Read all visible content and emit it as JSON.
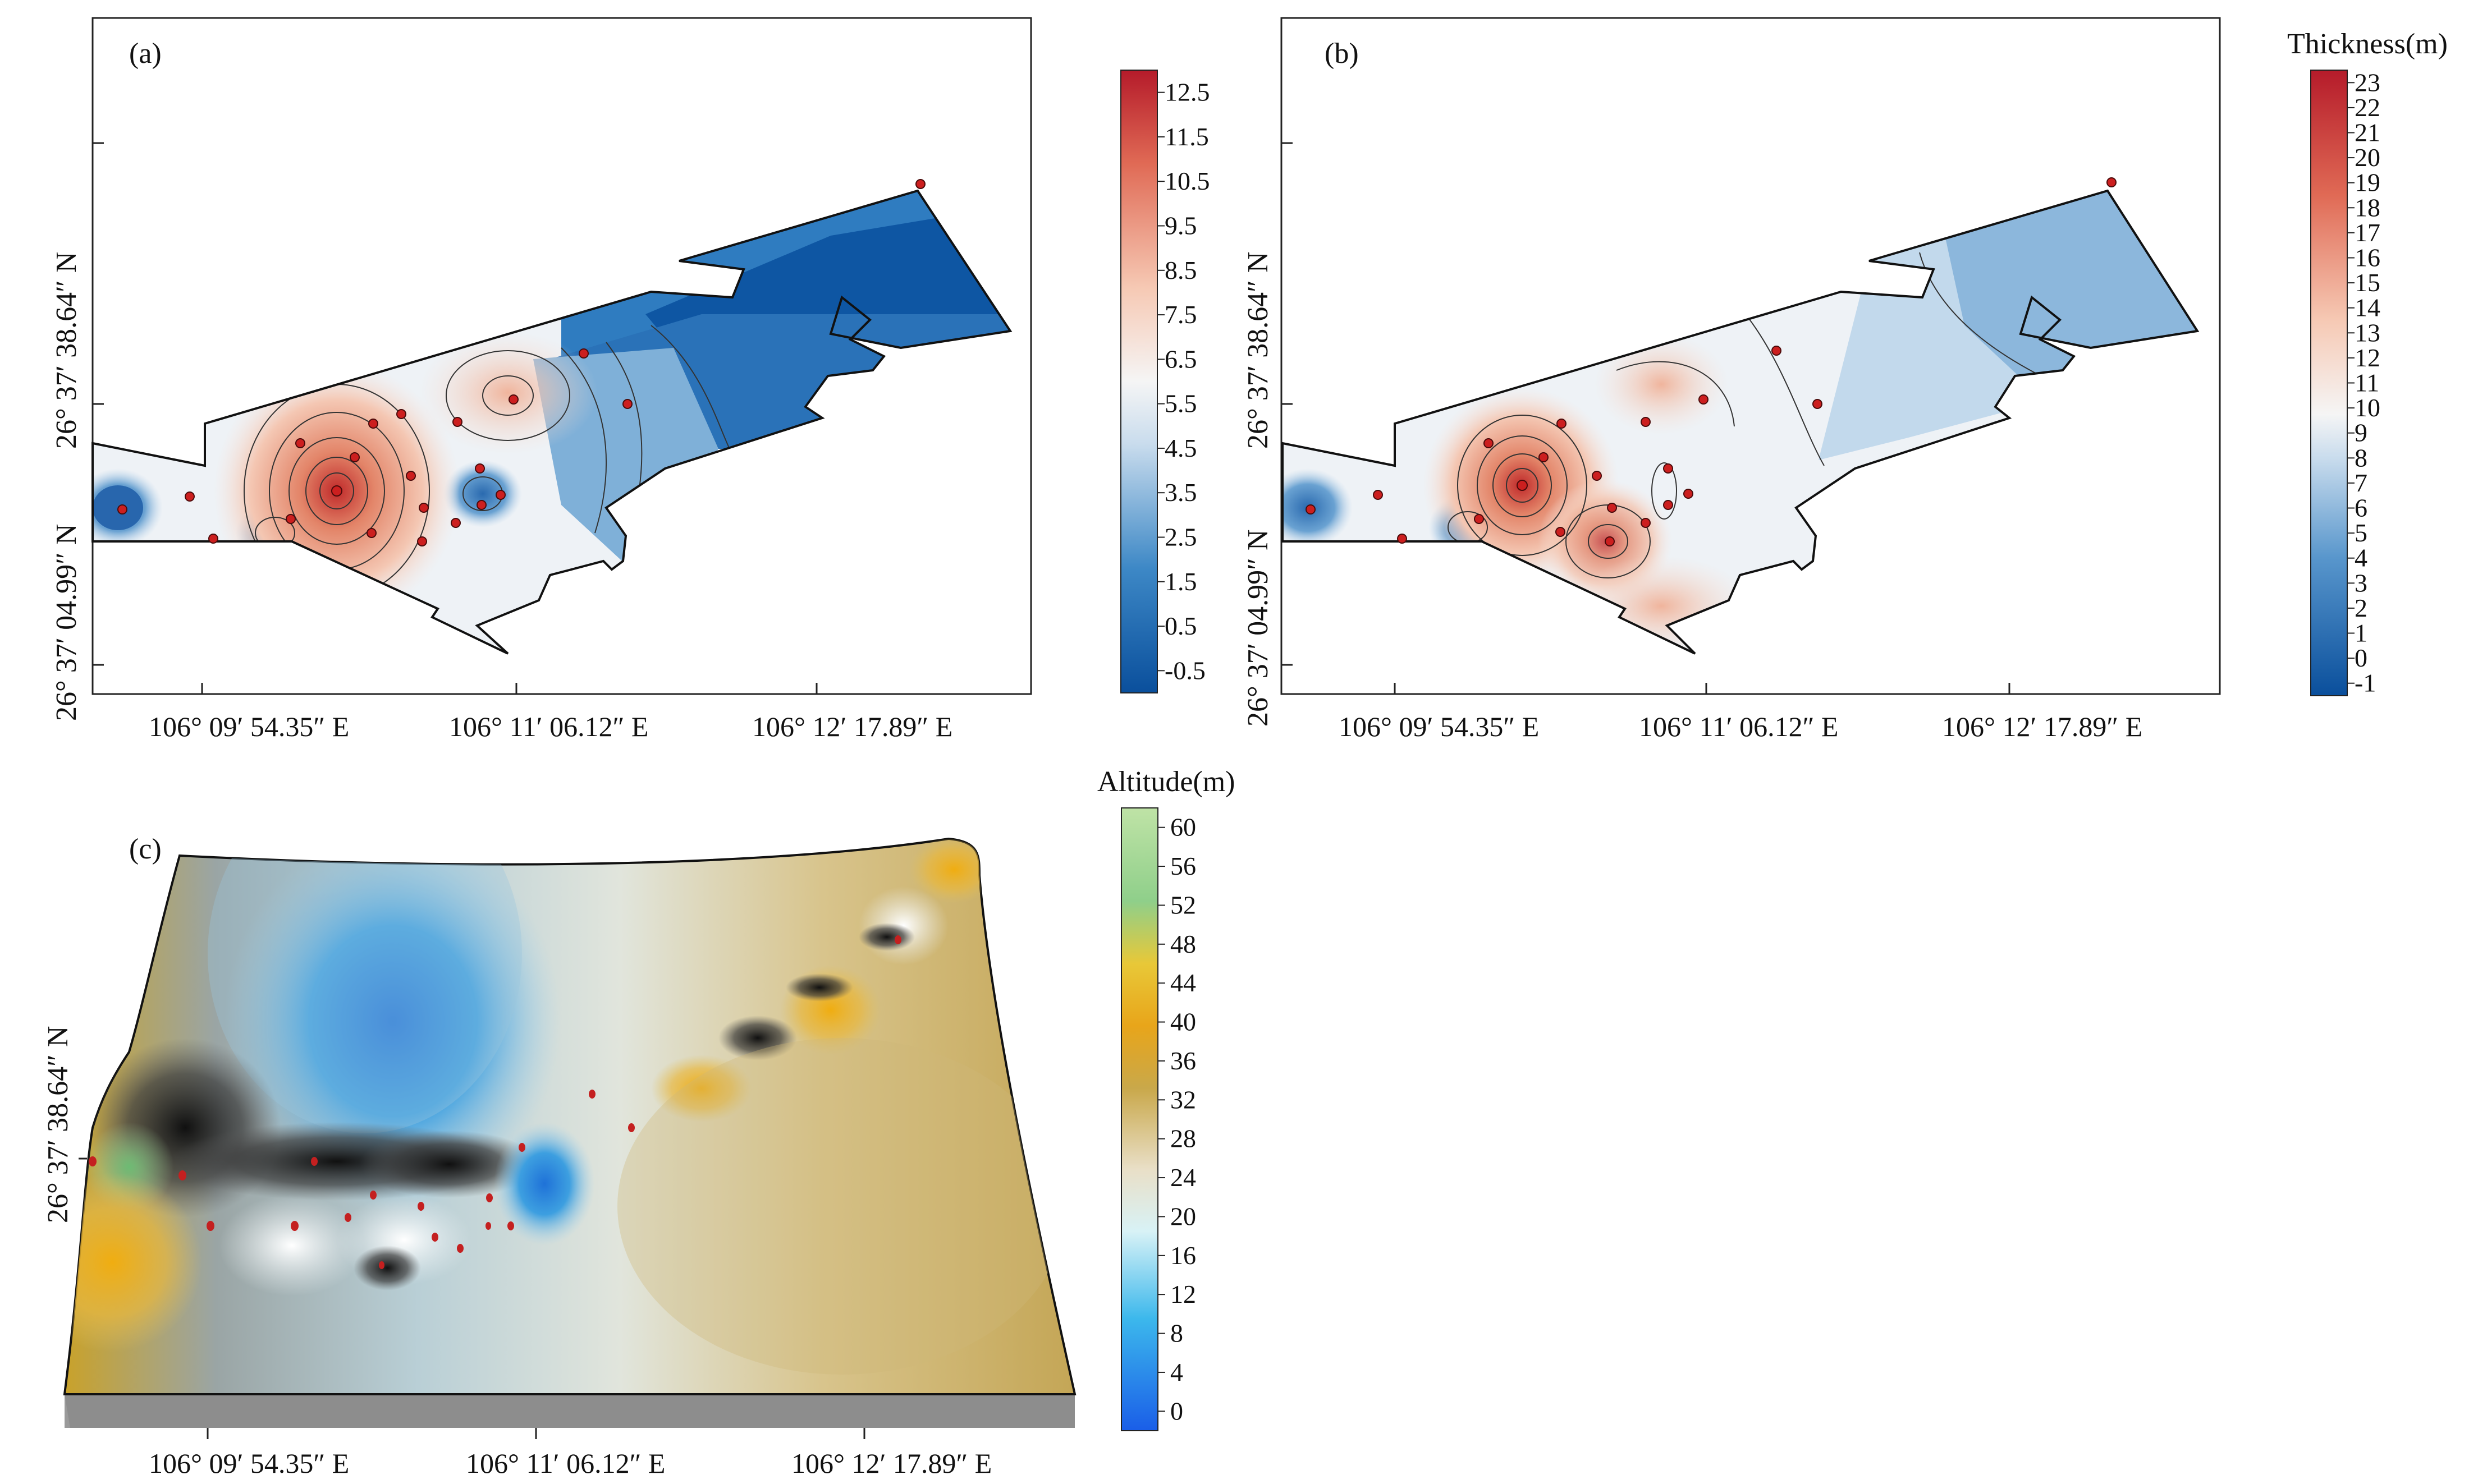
{
  "figure": {
    "panels": [
      {
        "label": "(a)",
        "x_ticks": [
          "106° 09′ 54.35″ E",
          "106° 11′ 06.12″ E",
          "106° 12′ 17.89″ E"
        ],
        "y_ticks": [
          "26° 37′ 04.99″ N",
          "26° 37′ 38.64″ N"
        ],
        "colorbar": {
          "title": "",
          "ticks": [
            "12.5",
            "11.5",
            "10.5",
            "9.5",
            "8.5",
            "7.5",
            "6.5",
            "5.5",
            "4.5",
            "3.5",
            "2.5",
            "1.5",
            "0.5",
            "-0.5"
          ]
        }
      },
      {
        "label": "(b)",
        "x_ticks": [
          "106° 09′ 54.35″ E",
          "106° 11′ 06.12″ E",
          "106° 12′ 17.89″ E"
        ],
        "y_ticks": [
          "26° 37′ 04.99″ N",
          "26° 37′ 38.64″ N"
        ],
        "colorbar": {
          "title": "Thickness(m)",
          "ticks": [
            "23",
            "22",
            "21",
            "20",
            "19",
            "18",
            "17",
            "16",
            "15",
            "14",
            "13",
            "12",
            "11",
            "10",
            "9",
            "8",
            "7",
            "6",
            "5",
            "4",
            "3",
            "2",
            "1",
            "0",
            "-1"
          ]
        }
      },
      {
        "label": "(c)",
        "x_ticks": [
          "106° 09′ 54.35″ E",
          "106° 11′ 06.12″ E",
          "106° 12′ 17.89″ E"
        ],
        "y_ticks": [
          "26° 37′ 38.64″ N"
        ],
        "colorbar": {
          "title": "Altitude(m)",
          "ticks": [
            "60",
            "56",
            "52",
            "48",
            "44",
            "40",
            "36",
            "32",
            "28",
            "24",
            "20",
            "16",
            "12",
            "8",
            "4",
            "0"
          ]
        }
      }
    ],
    "colors": {
      "deep_blue": "#0a4f9c",
      "mid_blue": "#2f7cc0",
      "light_blue": "#9fc3e0",
      "neutral": "#f4f4f4",
      "salmon": "#f2b197",
      "red": "#b51b2a",
      "sample_point": "#cc1f1f"
    }
  }
}
